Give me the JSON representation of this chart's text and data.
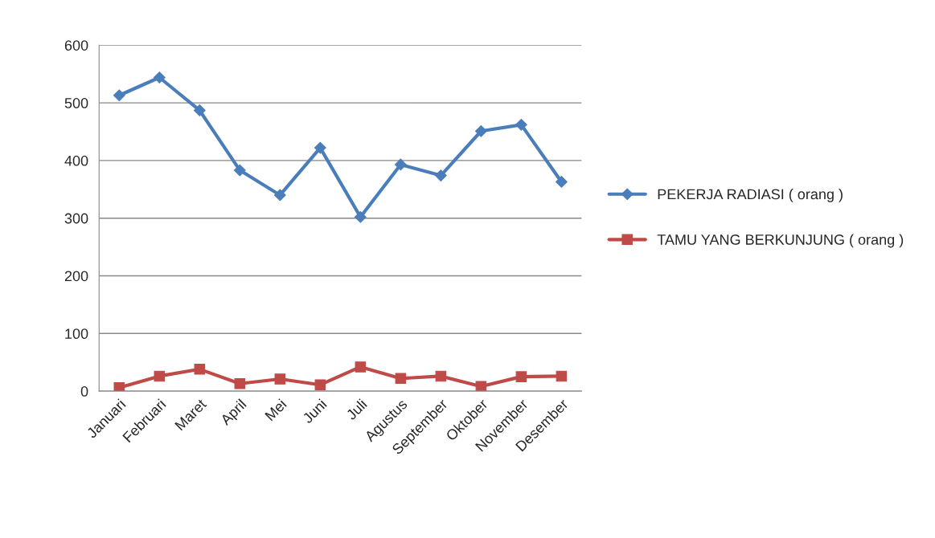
{
  "chart_data": {
    "type": "line",
    "categories": [
      "Januari",
      "Februari",
      "Maret",
      "April",
      "Mei",
      "Juni",
      "Juli",
      "Agustus",
      "September",
      "Oktober",
      "November",
      "Desember"
    ],
    "series": [
      {
        "name": "PEKERJA RADIASI ( orang )",
        "color": "#4a7ebb",
        "marker": "diamond",
        "values": [
          513,
          544,
          487,
          383,
          340,
          422,
          302,
          393,
          374,
          451,
          462,
          363
        ]
      },
      {
        "name": "TAMU YANG BERKUNJUNG ( orang )",
        "color": "#be4b48",
        "marker": "square",
        "values": [
          6,
          26,
          38,
          13,
          21,
          11,
          42,
          22,
          26,
          8,
          25,
          26
        ]
      }
    ],
    "ylim": [
      0,
      600
    ],
    "yticks": [
      0,
      100,
      200,
      300,
      400,
      500,
      600
    ],
    "grid": "y",
    "legend": "right",
    "line_style": "solid"
  }
}
